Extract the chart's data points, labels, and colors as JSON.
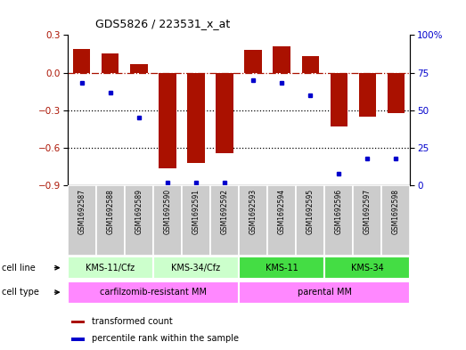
{
  "title": "GDS5826 / 223531_x_at",
  "samples": [
    "GSM1692587",
    "GSM1692588",
    "GSM1692589",
    "GSM1692590",
    "GSM1692591",
    "GSM1692592",
    "GSM1692593",
    "GSM1692594",
    "GSM1692595",
    "GSM1692596",
    "GSM1692597",
    "GSM1692598"
  ],
  "transformed_count": [
    0.19,
    0.15,
    0.07,
    -0.76,
    -0.72,
    -0.64,
    0.18,
    0.21,
    0.13,
    -0.43,
    -0.35,
    -0.32
  ],
  "percentile_rank": [
    68,
    62,
    45,
    2,
    2,
    2,
    70,
    68,
    60,
    8,
    18,
    18
  ],
  "cell_line_groups": [
    {
      "label": "KMS-11/Cfz",
      "start": 0,
      "end": 3,
      "color": "#ccffcc"
    },
    {
      "label": "KMS-34/Cfz",
      "start": 3,
      "end": 6,
      "color": "#ccffcc"
    },
    {
      "label": "KMS-11",
      "start": 6,
      "end": 9,
      "color": "#44dd44"
    },
    {
      "label": "KMS-34",
      "start": 9,
      "end": 12,
      "color": "#44dd44"
    }
  ],
  "cell_type_groups": [
    {
      "label": "carfilzomib-resistant MM",
      "start": 0,
      "end": 6,
      "color": "#ff88ff"
    },
    {
      "label": "parental MM",
      "start": 6,
      "end": 12,
      "color": "#ff88ff"
    }
  ],
  "bar_color": "#aa1100",
  "dot_color": "#0000cc",
  "bar_width": 0.6,
  "ylim_left": [
    -0.9,
    0.3
  ],
  "ylim_right": [
    0,
    100
  ],
  "yticks_left": [
    -0.9,
    -0.6,
    -0.3,
    0.0,
    0.3
  ],
  "yticks_right": [
    0,
    25,
    50,
    75,
    100
  ],
  "hline_y": 0.0,
  "dotted_lines": [
    -0.3,
    -0.6
  ],
  "legend_items": [
    {
      "label": "transformed count",
      "color": "#aa1100"
    },
    {
      "label": "percentile rank within the sample",
      "color": "#0000cc"
    }
  ],
  "sample_cell_color": "#cccccc",
  "cell_line_label_color": "#aaffaa",
  "figure_bg": "#ffffff"
}
